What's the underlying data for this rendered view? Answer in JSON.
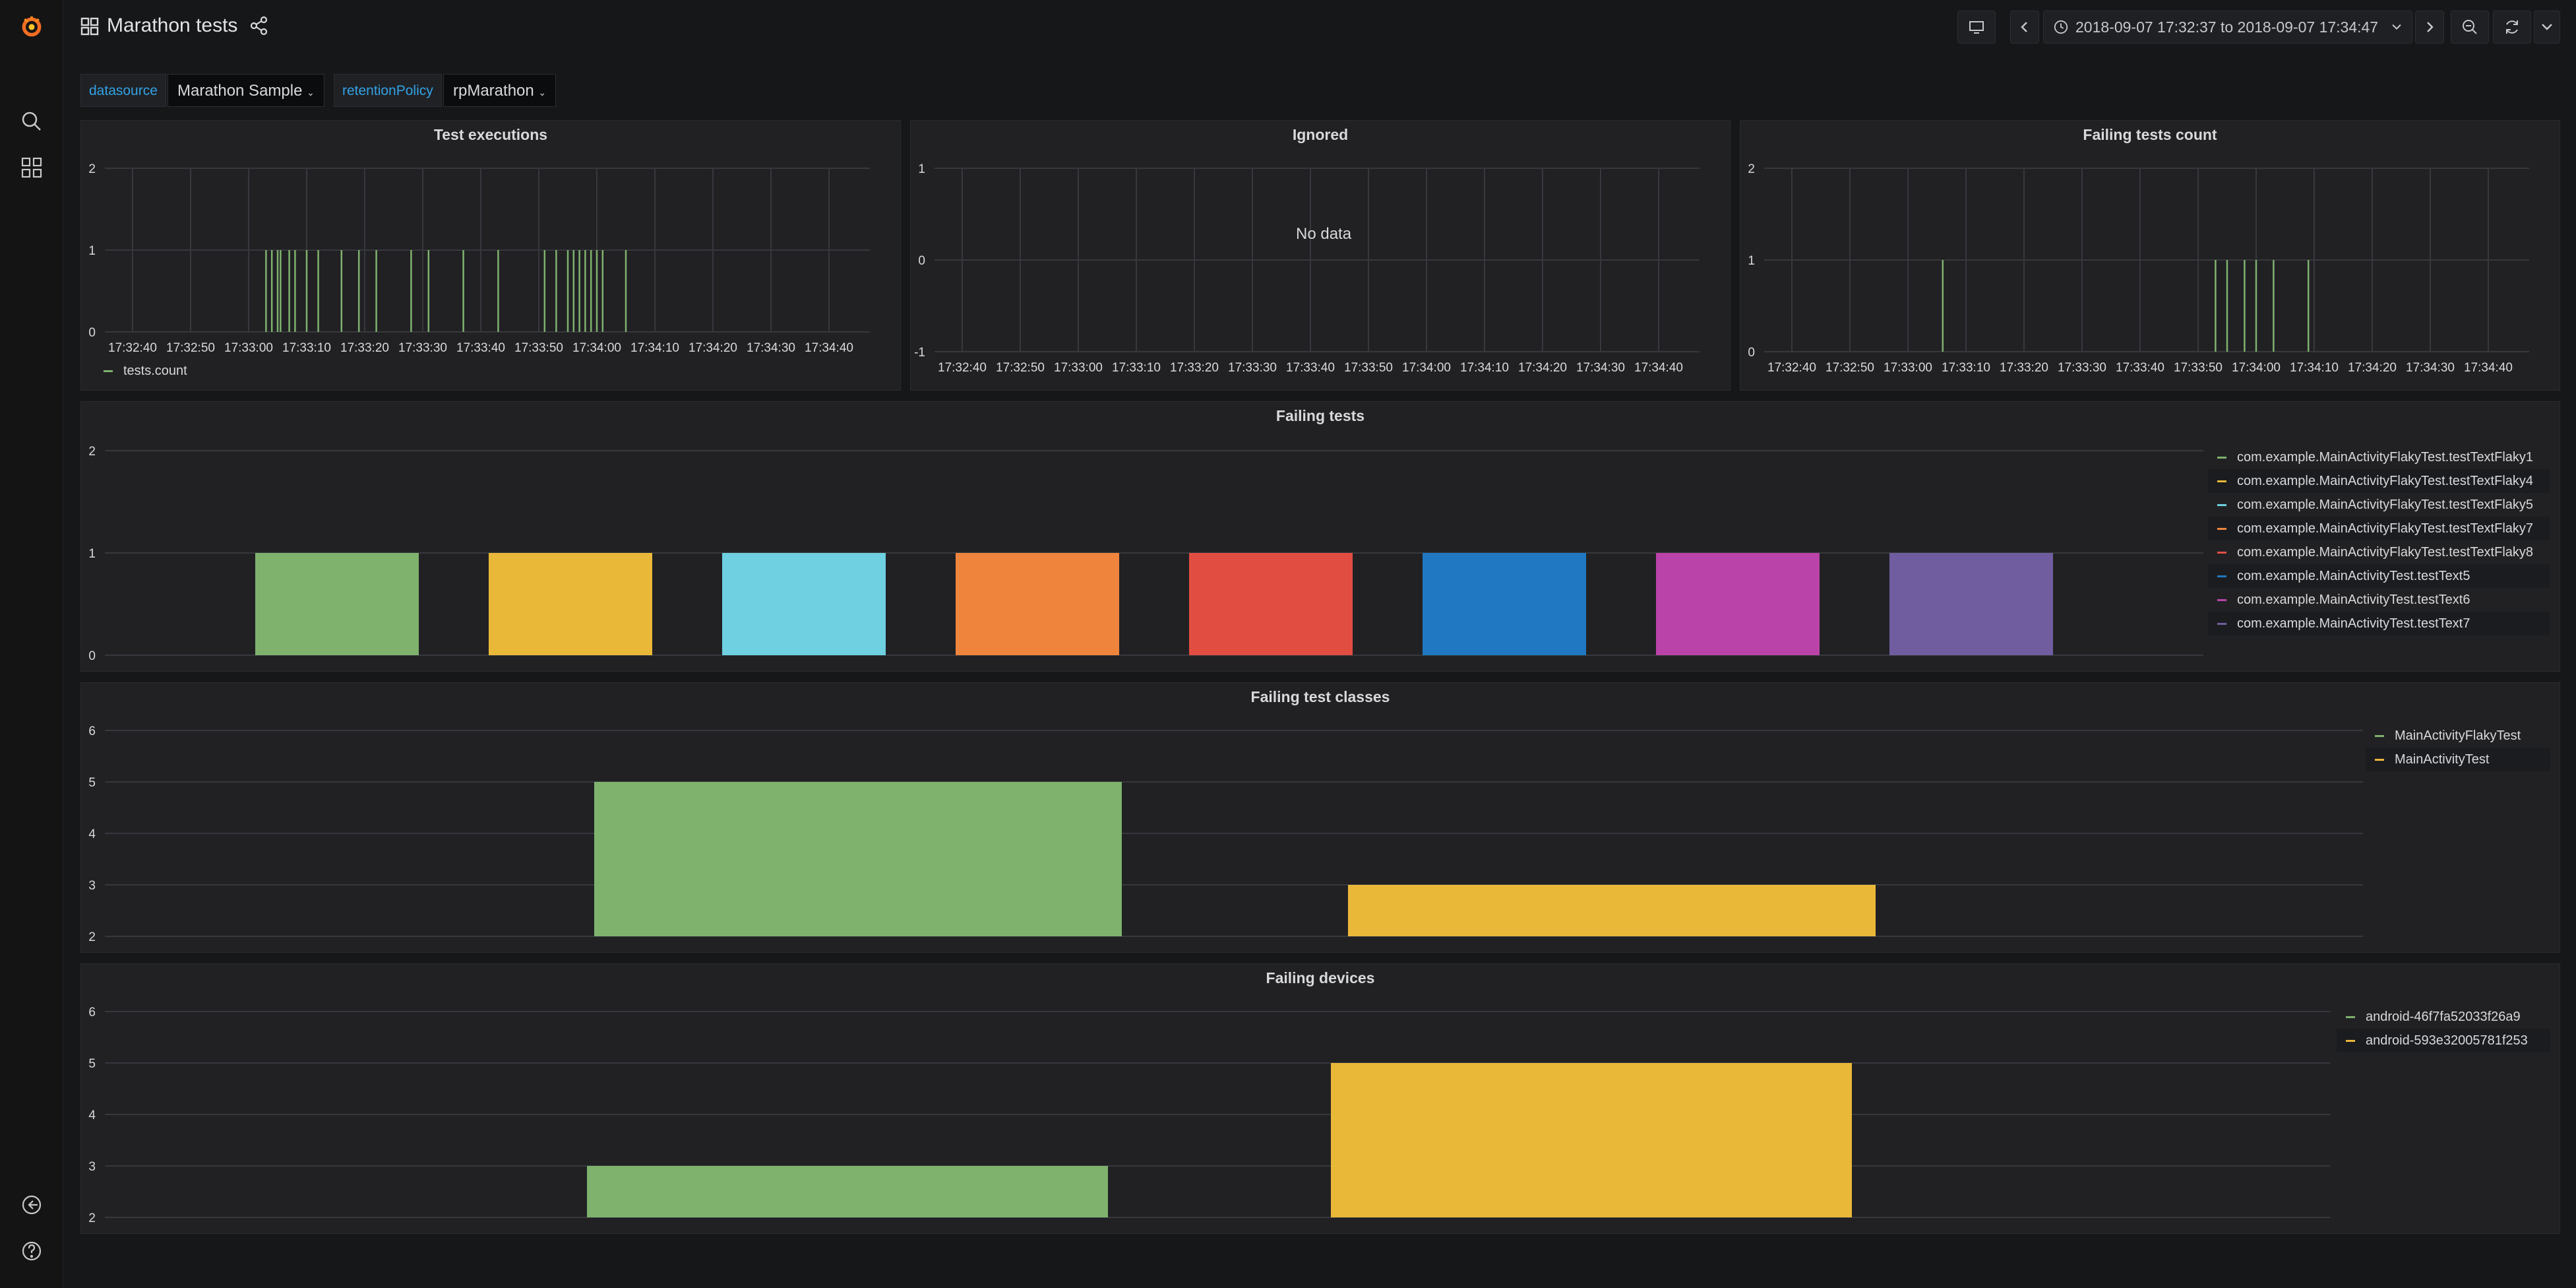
{
  "header": {
    "title": "Marathon tests",
    "time_range": "2018-09-07 17:32:37 to 2018-09-07 17:34:47"
  },
  "variables": [
    {
      "label": "datasource",
      "value": "Marathon Sample"
    },
    {
      "label": "retentionPolicy",
      "value": "rpMarathon"
    }
  ],
  "colors": {
    "green": "#7eb26d",
    "yellow": "#eab839",
    "cyan": "#6ed0e0",
    "orange": "#ef843c",
    "red": "#e24d42",
    "blue": "#1f78c1",
    "magenta": "#ba43a9",
    "purple": "#705da0",
    "link": "#33a2e5"
  },
  "panels": {
    "test_executions": {
      "title": "Test executions",
      "legend": [
        "tests.count"
      ]
    },
    "ignored": {
      "title": "Ignored",
      "no_data": "No data"
    },
    "failing_tests_count": {
      "title": "Failing tests count"
    },
    "failing_tests": {
      "title": "Failing tests"
    },
    "failing_test_classes": {
      "title": "Failing test classes"
    },
    "failing_devices": {
      "title": "Failing devices"
    }
  },
  "chart_data": [
    {
      "id": "test_executions",
      "type": "bar",
      "title": "Test executions",
      "x_ticks": [
        "17:32:40",
        "17:32:50",
        "17:33:00",
        "17:33:10",
        "17:33:20",
        "17:33:30",
        "17:33:40",
        "17:33:50",
        "17:34:00",
        "17:34:10",
        "17:34:20",
        "17:34:30",
        "17:34:40"
      ],
      "y_ticks": [
        "0",
        "1",
        "2"
      ],
      "ylim": [
        0,
        2
      ],
      "series": [
        {
          "name": "tests.count",
          "color": "#7eb26d",
          "x": [
            "17:33:03",
            "17:33:04",
            "17:33:05",
            "17:33:05.5",
            "17:33:07",
            "17:33:08",
            "17:33:10",
            "17:33:12",
            "17:33:16",
            "17:33:19",
            "17:33:22",
            "17:33:28",
            "17:33:31",
            "17:33:37",
            "17:33:43",
            "17:33:51",
            "17:33:53",
            "17:33:55",
            "17:33:56",
            "17:33:57",
            "17:33:58",
            "17:33:59",
            "17:34:00",
            "17:34:01",
            "17:34:05"
          ],
          "values": [
            1,
            1,
            1,
            1,
            1,
            1,
            1,
            1,
            1,
            1,
            1,
            1,
            1,
            1,
            1,
            1,
            1,
            1,
            1,
            1,
            1,
            1,
            1,
            1,
            1
          ]
        }
      ]
    },
    {
      "id": "ignored",
      "type": "line",
      "title": "Ignored",
      "x_ticks": [
        "17:32:40",
        "17:32:50",
        "17:33:00",
        "17:33:10",
        "17:33:20",
        "17:33:30",
        "17:33:40",
        "17:33:50",
        "17:34:00",
        "17:34:10",
        "17:34:20",
        "17:34:30",
        "17:34:40"
      ],
      "y_ticks": [
        "-1",
        "0",
        "1"
      ],
      "ylim": [
        -1,
        1
      ],
      "series": []
    },
    {
      "id": "failing_tests_count",
      "type": "bar",
      "title": "Failing tests count",
      "x_ticks": [
        "17:32:40",
        "17:32:50",
        "17:33:00",
        "17:33:10",
        "17:33:20",
        "17:33:30",
        "17:33:40",
        "17:33:50",
        "17:34:00",
        "17:34:10",
        "17:34:20",
        "17:34:30",
        "17:34:40"
      ],
      "y_ticks": [
        "0",
        "1",
        "2"
      ],
      "ylim": [
        0,
        2
      ],
      "series": [
        {
          "color": "#7eb26d",
          "x": [
            "17:33:06",
            "17:33:53",
            "17:33:55",
            "17:33:58",
            "17:34:00",
            "17:34:03",
            "17:34:09"
          ],
          "values": [
            1,
            1,
            1,
            1,
            1,
            1,
            1
          ]
        }
      ]
    },
    {
      "id": "failing_tests",
      "type": "bar",
      "title": "Failing tests",
      "y_ticks": [
        "0",
        "1",
        "2"
      ],
      "ylim": [
        0,
        2
      ],
      "categories": [
        "com.example.MainActivityFlakyTest.testTextFlaky1",
        "com.example.MainActivityFlakyTest.testTextFlaky4",
        "com.example.MainActivityFlakyTest.testTextFlaky5",
        "com.example.MainActivityFlakyTest.testTextFlaky7",
        "com.example.MainActivityFlakyTest.testTextFlaky8",
        "com.example.MainActivityTest.testText5",
        "com.example.MainActivityTest.testText6",
        "com.example.MainActivityTest.testText7"
      ],
      "values": [
        1,
        1,
        1,
        1,
        1,
        1,
        1,
        1
      ],
      "colors": [
        "#7eb26d",
        "#eab839",
        "#6ed0e0",
        "#ef843c",
        "#e24d42",
        "#1f78c1",
        "#ba43a9",
        "#705da0"
      ]
    },
    {
      "id": "failing_test_classes",
      "type": "bar",
      "title": "Failing test classes",
      "y_ticks": [
        "2",
        "3",
        "4",
        "5",
        "6"
      ],
      "ylim": [
        2,
        6
      ],
      "categories": [
        "MainActivityFlakyTest",
        "MainActivityTest"
      ],
      "values": [
        5,
        3
      ],
      "colors": [
        "#7eb26d",
        "#eab839"
      ]
    },
    {
      "id": "failing_devices",
      "type": "bar",
      "title": "Failing devices",
      "y_ticks": [
        "2",
        "3",
        "4",
        "5",
        "6"
      ],
      "ylim": [
        2,
        6
      ],
      "categories": [
        "android-46f7fa52033f26a9",
        "android-593e32005781f253"
      ],
      "values": [
        3,
        5
      ],
      "colors": [
        "#7eb26d",
        "#eab839"
      ]
    }
  ]
}
